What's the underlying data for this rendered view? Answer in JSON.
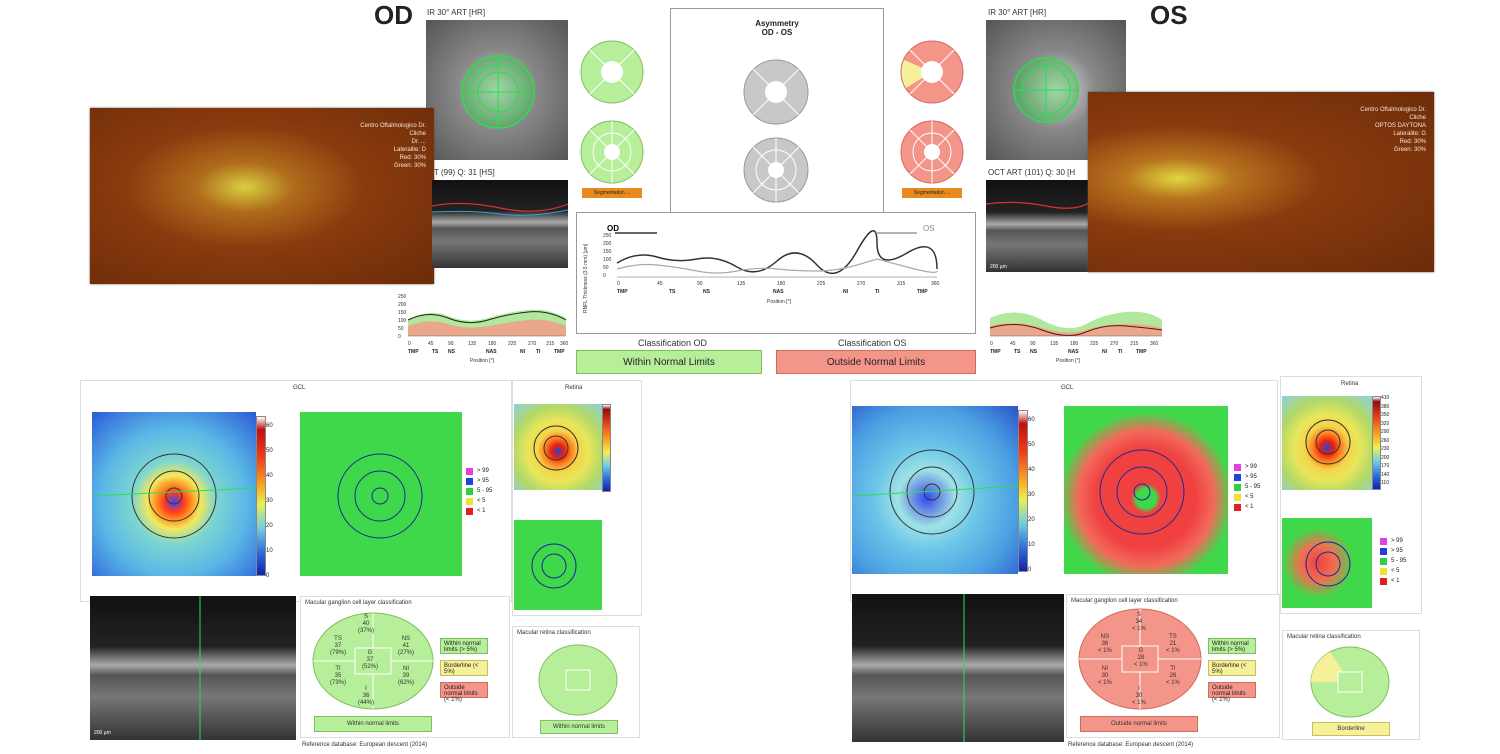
{
  "header": {
    "od_label": "OD",
    "os_label": "OS"
  },
  "od": {
    "ir_title": "IR 30° ART [HR]",
    "oct_title": "T (99) Q: 31 [HS]",
    "fundus_info": [
      "Centro Oftalmologico Dr.",
      "Cliche",
      "Dr. ...",
      "Lateralite: D",
      "Red: 30%",
      "Green: 30%"
    ],
    "classification_label": "Classification OD",
    "classification_value": "Within Normal Limits",
    "warning": "Segmentation ...",
    "profile_xticks": [
      "0",
      "45",
      "90",
      "135",
      "180",
      "225",
      "270",
      "315",
      "360"
    ],
    "profile_zones": [
      "TMP",
      "TS",
      "NS",
      "NAS",
      "NI",
      "TI",
      "TMP"
    ],
    "profile_yticks": [
      "0",
      "50",
      "100",
      "150",
      "200",
      "250"
    ],
    "profile_xlabel": "Position [°]"
  },
  "os": {
    "ir_title": "IR 30° ART [HR]",
    "oct_title": "OCT ART (101) Q: 30 [H",
    "fundus_info": [
      "Centro Oftalmologico Dr.",
      "Cliche",
      "OPTOS DAYTONA",
      "Lateralite: G",
      "Red: 30%",
      "Green: 30%"
    ],
    "classification_label": "Classification OS",
    "classification_value": "Outside Normal Limits",
    "warning": "Segmentation ...",
    "scale": "200 µm"
  },
  "asymmetry": {
    "title": "Asymmetry",
    "subtitle": "OD - OS",
    "od_legend": "OD",
    "os_legend": "OS",
    "xticks": [
      "0",
      "45",
      "90",
      "135",
      "180",
      "225",
      "270",
      "315",
      "360"
    ],
    "zones": [
      "TMP",
      "TS",
      "NS",
      "NAS",
      "NI",
      "TI",
      "TMP"
    ],
    "yticks": [
      "0",
      "50",
      "100",
      "150",
      "200",
      "250"
    ],
    "xlabel": "Position [°]",
    "ylabel": "RNFL Thickness (3.5 mm) [µm]"
  },
  "gcl_od": {
    "title": "GCL",
    "retina_title": "Retina",
    "legend": [
      "> 99",
      "> 95",
      "5 - 95",
      "< 5",
      "< 1"
    ],
    "classification_title": "Macular ganglion cell layer classification",
    "sectors": {
      "S": "S\n40\n(37%)",
      "TS": "TS\n37\n(79%)",
      "NS": "NS\n41\n(27%)",
      "TI": "TI\n35\n(73%)",
      "NI": "NI\n39\n(62%)",
      "I": "I\n36\n(44%)",
      "G": "G\n37\n(52%)"
    },
    "result": "Within normal limits",
    "side_boxes": [
      "Within normal limits (> 5%)",
      "Borderline (< 5%)",
      "Outside normal limits (< 1%)"
    ],
    "retina_class_title": "Macular retina classification",
    "retina_result": "Within normal limits",
    "ref_db": "Reference database:  European descent (2014)",
    "scale": "200 µm"
  },
  "gcl_os": {
    "title": "GCL",
    "retina_title": "Retina",
    "legend": [
      "> 99",
      "> 95",
      "5 - 95",
      "< 5",
      "< 1"
    ],
    "classification_title": "Macular ganglion cell layer classification",
    "sectors": {
      "S": "S\n34\n< 1%",
      "TS": "TS\n21\n< 1%",
      "NS": "NS\n36\n< 1%",
      "TI": "TI\n28\n< 1%",
      "NI": "NI\n30\n< 1%",
      "I": "I\n30\n< 1%",
      "G": "G\n28\n< 1%"
    },
    "result": "Outside normal limits",
    "side_boxes": [
      "Within normal limits (> 5%)",
      "Borderline (< 5%)",
      "Outside normal limits (< 1%)"
    ],
    "retina_class_title": "Macular retina classification",
    "retina_result": "Borderline",
    "ref_db": "Reference database:  European descent (2014)"
  },
  "colorbar_gcl": [
    "60",
    "50",
    "40",
    "30",
    "20",
    "10",
    "0"
  ],
  "colorbar_ret": [
    "410",
    "380",
    "350",
    "320",
    "290",
    "260",
    "230",
    "200",
    "170",
    "140",
    "110"
  ],
  "colors": {
    "normal": "#b6ee9a",
    "outside": "#f4958a",
    "borderline": "#f7f09a",
    "od_line": "#333333",
    "os_line": "#999999"
  }
}
